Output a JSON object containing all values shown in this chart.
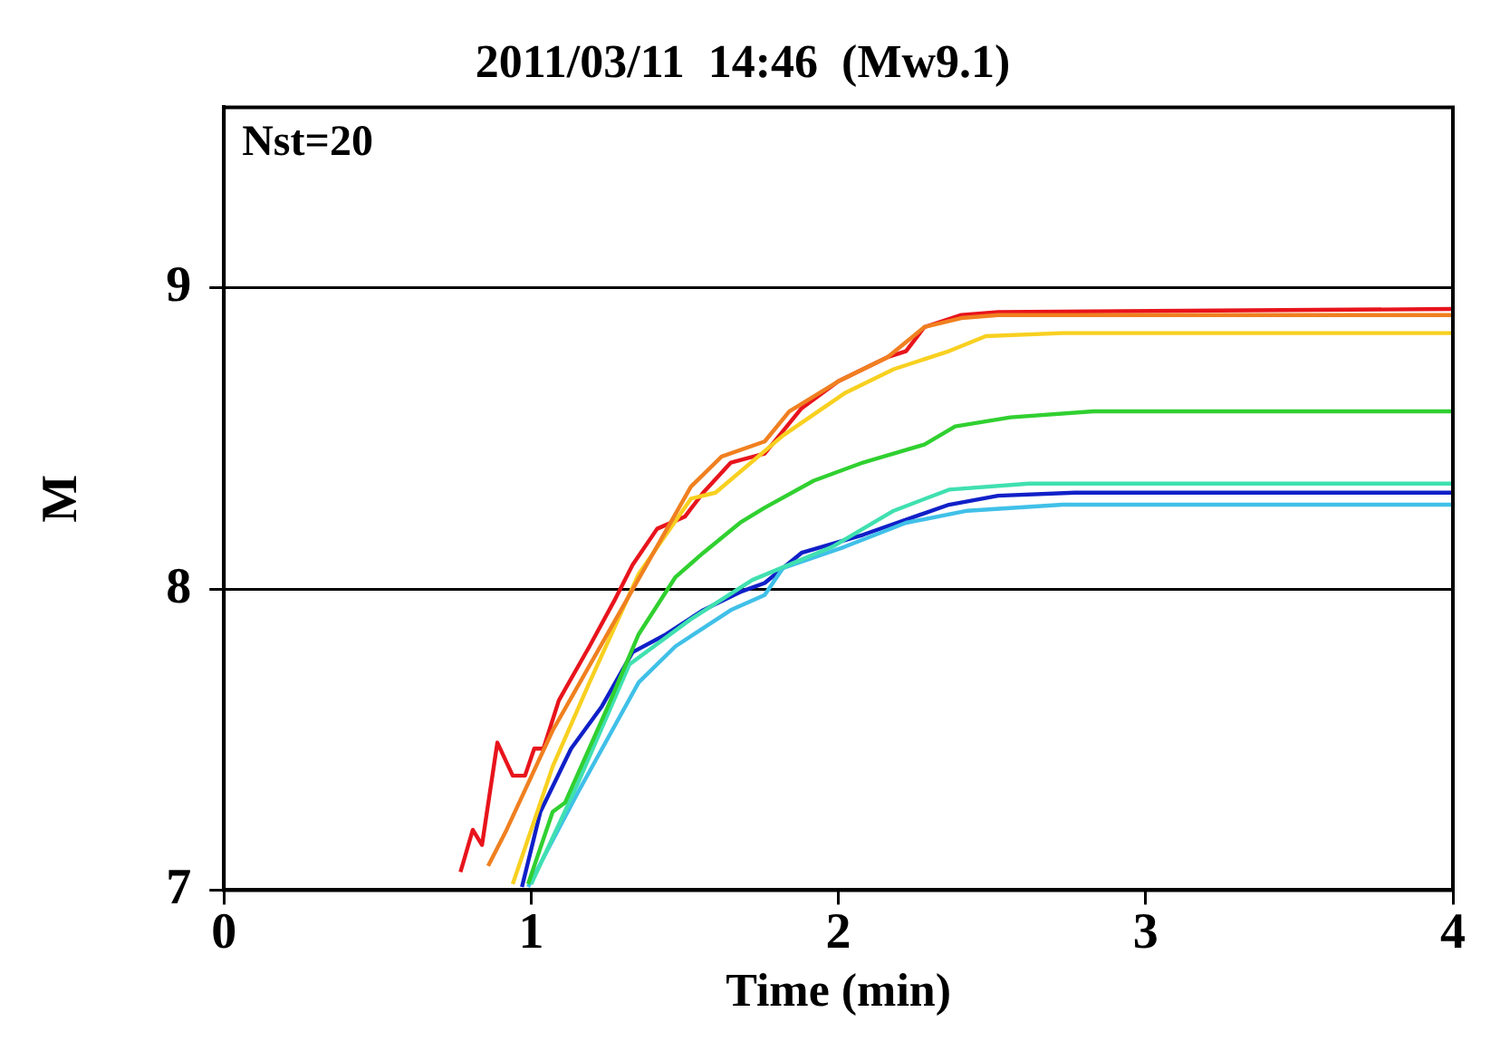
{
  "chart_data": {
    "type": "line",
    "title": "2011/03/11  14:46  (Mw9.1)",
    "xlabel": "Time (min)",
    "ylabel": "M",
    "annotations": [
      "Nst=20"
    ],
    "xlim": [
      0,
      4
    ],
    "ylim": [
      7,
      9.6
    ],
    "xticks": [
      0,
      1,
      2,
      3,
      4
    ],
    "yticks": [
      7,
      8,
      9
    ],
    "grid": "y",
    "legend": false,
    "marker": "none",
    "line_style": "solid",
    "series": [
      {
        "color": "#f08020",
        "x": [
          0.86,
          0.92,
          1.07,
          1.52,
          1.62,
          1.76,
          1.84,
          2.0,
          2.16,
          2.28,
          2.4,
          2.52,
          4.0
        ],
        "values": [
          7.08,
          7.2,
          7.53,
          8.34,
          8.44,
          8.49,
          8.59,
          8.69,
          8.77,
          8.87,
          8.9,
          8.91,
          8.91
        ]
      },
      {
        "color": "#f8d020",
        "x": [
          0.94,
          1.07,
          1.19,
          1.35,
          1.52,
          1.6,
          1.82,
          2.02,
          2.18,
          2.36,
          2.48,
          2.73,
          4.0
        ],
        "values": [
          7.02,
          7.41,
          7.69,
          8.05,
          8.3,
          8.32,
          8.51,
          8.65,
          8.73,
          8.79,
          8.84,
          8.85,
          8.85
        ]
      },
      {
        "color": "#e8141c",
        "x": [
          0.77,
          0.81,
          0.84,
          0.89,
          0.94,
          0.98,
          1.01,
          1.04,
          1.09,
          1.19,
          1.27,
          1.33,
          1.41,
          1.5,
          1.56,
          1.65,
          1.76,
          1.88,
          2.0,
          2.16,
          2.22,
          2.28,
          2.4,
          2.52,
          4.0
        ],
        "values": [
          7.06,
          7.2,
          7.15,
          7.49,
          7.38,
          7.38,
          7.47,
          7.47,
          7.63,
          7.81,
          7.96,
          8.08,
          8.2,
          8.24,
          8.32,
          8.42,
          8.45,
          8.6,
          8.69,
          8.77,
          8.79,
          8.87,
          8.91,
          8.92,
          8.93
        ]
      },
      {
        "color": "#30d030",
        "x": [
          0.99,
          1.07,
          1.11,
          1.25,
          1.35,
          1.47,
          1.56,
          1.68,
          1.76,
          1.92,
          2.08,
          2.28,
          2.38,
          2.56,
          2.83,
          4.0
        ],
        "values": [
          7.02,
          7.26,
          7.29,
          7.61,
          7.85,
          8.04,
          8.12,
          8.22,
          8.27,
          8.36,
          8.42,
          8.48,
          8.54,
          8.57,
          8.59,
          8.59
        ]
      },
      {
        "color": "#40e0b0",
        "x": [
          1.0,
          1.15,
          1.32,
          1.52,
          1.72,
          1.98,
          2.18,
          2.36,
          2.62,
          4.0
        ],
        "values": [
          7.02,
          7.35,
          7.75,
          7.9,
          8.03,
          8.14,
          8.26,
          8.33,
          8.35,
          8.35
        ]
      },
      {
        "color": "#40c0e8",
        "x": [
          0.99,
          1.15,
          1.35,
          1.47,
          1.65,
          1.76,
          1.82,
          2.02,
          2.22,
          2.42,
          2.73,
          4.0
        ],
        "values": [
          7.01,
          7.32,
          7.69,
          7.81,
          7.93,
          7.98,
          8.07,
          8.14,
          8.22,
          8.26,
          8.28,
          8.28
        ]
      },
      {
        "color": "#1020c8",
        "x": [
          0.97,
          1.03,
          1.13,
          1.23,
          1.33,
          1.44,
          1.56,
          1.68,
          1.76,
          1.88,
          2.08,
          2.36,
          2.52,
          2.77,
          4.0
        ],
        "values": [
          7.01,
          7.26,
          7.47,
          7.61,
          7.79,
          7.85,
          7.93,
          7.99,
          8.02,
          8.12,
          8.18,
          8.28,
          8.31,
          8.32,
          8.32
        ]
      }
    ]
  }
}
